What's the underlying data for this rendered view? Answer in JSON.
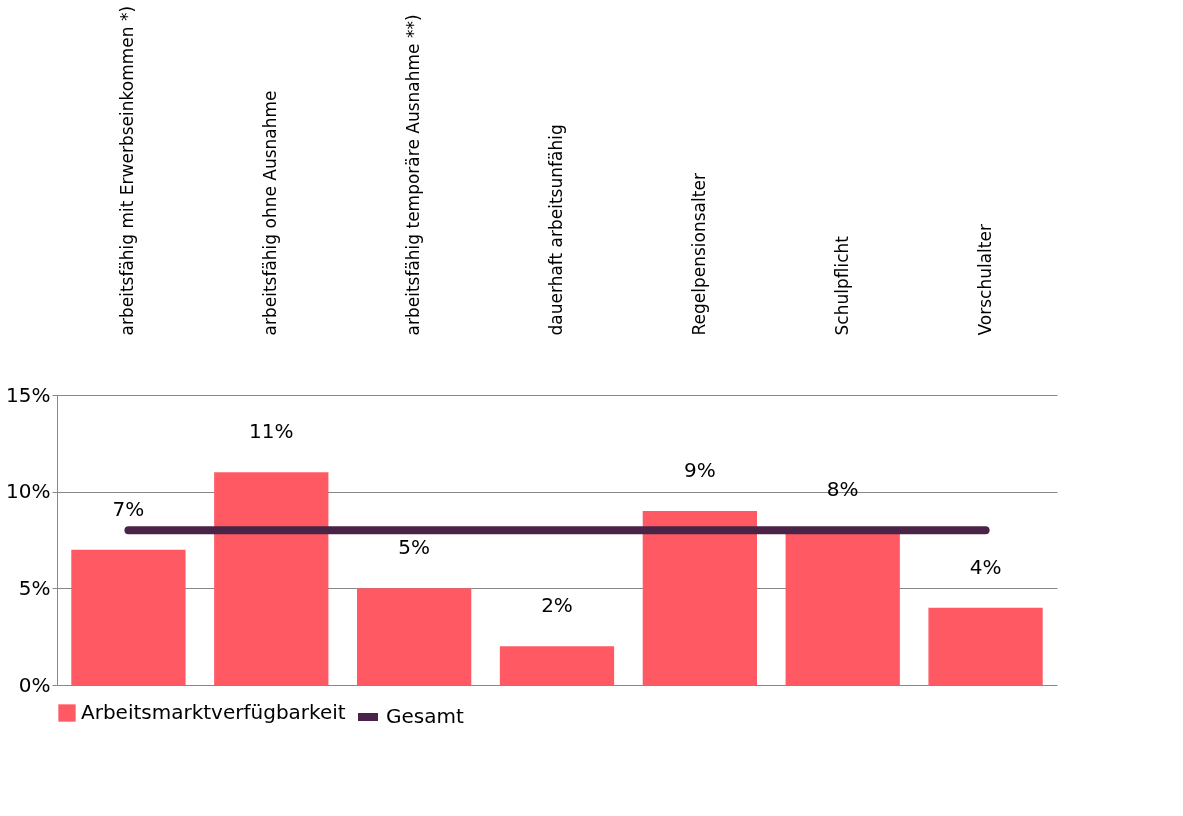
{
  "chart_data": {
    "type": "bar",
    "categories": [
      "arbeitsfähig mit Erwerbseinkommen *)",
      "arbeitsfähig ohne Ausnahme",
      "arbeitsfähig temporäre Ausnahme **)",
      "dauerhaft arbeitsunfähig",
      "Regelpensionsalter",
      "Schulpflicht",
      "Vorschulalter"
    ],
    "series": [
      {
        "name": "Arbeitsmarktverfügbarkeit",
        "color": "#ff5a64",
        "values": [
          7,
          11,
          5,
          2,
          9,
          8,
          4
        ],
        "value_labels": [
          "7%",
          "11%",
          "5%",
          "2%",
          "9%",
          "8%",
          "4%"
        ]
      },
      {
        "name": "Gesamt",
        "type": "line",
        "color": "#4a2446",
        "values": [
          8,
          8,
          8,
          8,
          8,
          8,
          8
        ]
      }
    ],
    "ylim": [
      0,
      15
    ],
    "yticks": [
      {
        "value": 0,
        "label": "0%"
      },
      {
        "value": 5,
        "label": "5%"
      },
      {
        "value": 10,
        "label": "10%"
      },
      {
        "value": 15,
        "label": "15%"
      }
    ],
    "grid": "y",
    "legend": "bottom"
  }
}
